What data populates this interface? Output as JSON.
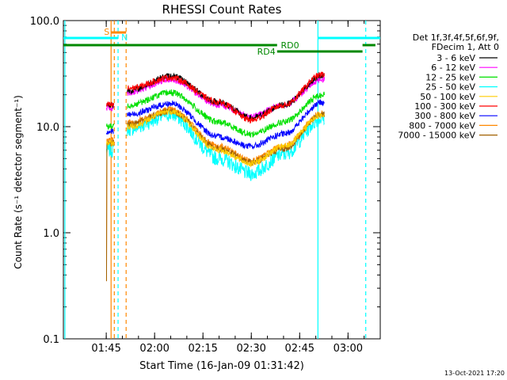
{
  "chart_data": {
    "type": "line",
    "title": "RHESSI Count Rates",
    "xlabel": "Start Time (16-Jan-09 01:31:42)",
    "ylabel": "Count Rate (s⁻¹ detector segment⁻¹)",
    "yscale": "log",
    "ylim": [
      0.1,
      100
    ],
    "xlim": [
      "01:31:42",
      "03:10:00"
    ],
    "x_ticks": [
      "01:45",
      "02:00",
      "02:15",
      "02:30",
      "02:45",
      "03:00"
    ],
    "y_ticks": [
      "0.1",
      "1.0",
      "10.0",
      "100.0"
    ],
    "grid": false,
    "legend": {
      "placement": "right",
      "header": [
        "Det 1f,3f,4f,5f,6f,9f,",
        "FDecim 1, Att 0"
      ]
    },
    "series": [
      {
        "name": "3 - 6 keV",
        "color": "#000000",
        "values": [
          {
            "x": "01:47",
            "y": 16
          },
          {
            "x": "01:52",
            "y": 22
          },
          {
            "x": "02:05",
            "y": 30
          },
          {
            "x": "02:20",
            "y": 17
          },
          {
            "x": "02:30",
            "y": 12
          },
          {
            "x": "02:40",
            "y": 16
          },
          {
            "x": "02:52",
            "y": 30
          }
        ]
      },
      {
        "name": "6 - 12 keV",
        "color": "#ff00ff",
        "values": [
          {
            "x": "01:47",
            "y": 15
          },
          {
            "x": "01:52",
            "y": 21
          },
          {
            "x": "02:05",
            "y": 28
          },
          {
            "x": "02:20",
            "y": 16
          },
          {
            "x": "02:30",
            "y": 12.5
          },
          {
            "x": "02:40",
            "y": 16
          },
          {
            "x": "02:52",
            "y": 28
          }
        ]
      },
      {
        "name": "12 - 25 keV",
        "color": "#00e000",
        "values": [
          {
            "x": "01:47",
            "y": 10
          },
          {
            "x": "01:52",
            "y": 16
          },
          {
            "x": "02:05",
            "y": 21
          },
          {
            "x": "02:20",
            "y": 11
          },
          {
            "x": "02:30",
            "y": 8.5
          },
          {
            "x": "02:40",
            "y": 11
          },
          {
            "x": "02:52",
            "y": 20
          }
        ]
      },
      {
        "name": "25 - 50 keV",
        "color": "#00ffff",
        "values": [
          {
            "x": "01:47",
            "y": 6
          },
          {
            "x": "01:52",
            "y": 9.5
          },
          {
            "x": "02:05",
            "y": 13
          },
          {
            "x": "02:20",
            "y": 5
          },
          {
            "x": "02:30",
            "y": 3.6
          },
          {
            "x": "02:40",
            "y": 5.5
          },
          {
            "x": "02:52",
            "y": 12
          }
        ]
      },
      {
        "name": "50 - 100 keV",
        "color": "#ffcc00",
        "values": [
          {
            "x": "01:47",
            "y": 7
          },
          {
            "x": "01:52",
            "y": 10
          },
          {
            "x": "02:05",
            "y": 14
          },
          {
            "x": "02:20",
            "y": 6
          },
          {
            "x": "02:30",
            "y": 4.5
          },
          {
            "x": "02:40",
            "y": 6.5
          },
          {
            "x": "02:52",
            "y": 13
          }
        ]
      },
      {
        "name": "100 - 300 keV",
        "color": "#ff0000",
        "values": [
          {
            "x": "01:47",
            "y": 16
          },
          {
            "x": "01:52",
            "y": 23
          },
          {
            "x": "02:05",
            "y": 29
          },
          {
            "x": "02:20",
            "y": 17
          },
          {
            "x": "02:30",
            "y": 11.5
          },
          {
            "x": "02:40",
            "y": 16
          },
          {
            "x": "02:52",
            "y": 31
          }
        ]
      },
      {
        "name": "300 - 800 keV",
        "color": "#0000ff",
        "values": [
          {
            "x": "01:47",
            "y": 9
          },
          {
            "x": "01:52",
            "y": 13
          },
          {
            "x": "02:05",
            "y": 16.5
          },
          {
            "x": "02:20",
            "y": 8
          },
          {
            "x": "02:30",
            "y": 6.5
          },
          {
            "x": "02:40",
            "y": 8.5
          },
          {
            "x": "02:52",
            "y": 17
          }
        ]
      },
      {
        "name": "800 - 7000 keV",
        "color": "#ff8800",
        "values": [
          {
            "x": "01:47",
            "y": 7.5
          },
          {
            "x": "01:52",
            "y": 11
          },
          {
            "x": "02:05",
            "y": 14.5
          },
          {
            "x": "02:20",
            "y": 6.5
          },
          {
            "x": "02:30",
            "y": 4.8
          },
          {
            "x": "02:40",
            "y": 6.5
          },
          {
            "x": "02:52",
            "y": 13.5
          }
        ]
      },
      {
        "name": "7000 - 15000 keV",
        "color": "#a06000",
        "values": [
          {
            "x": "01:47",
            "y": 7
          },
          {
            "x": "01:52",
            "y": 10.5
          },
          {
            "x": "02:05",
            "y": 14
          },
          {
            "x": "02:20",
            "y": 6.2
          },
          {
            "x": "02:30",
            "y": 4.6
          },
          {
            "x": "02:40",
            "y": 6.2
          },
          {
            "x": "02:52",
            "y": 13
          }
        ]
      }
    ],
    "annotations": [
      {
        "label": "S",
        "color": "#ff8800"
      },
      {
        "label": "N",
        "color": "#00ffff"
      },
      {
        "label": "RD0",
        "color": "#008800"
      },
      {
        "label": "RD4",
        "color": "#008800"
      }
    ],
    "footer": "13-Oct-2021 17:20"
  }
}
